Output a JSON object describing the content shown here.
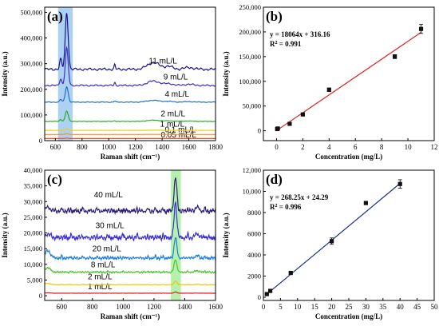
{
  "chart_data": [
    {
      "type": "line",
      "panel_label": "(a)",
      "xlabel": "Raman shift (cm⁻¹)",
      "ylabel": "Intensity (a.u.)",
      "xlim": [
        520,
        1800
      ],
      "ylim": [
        0,
        520000
      ],
      "xticks": [
        600,
        800,
        1000,
        1200,
        1400,
        1600,
        1800
      ],
      "yticks": [
        0,
        100000,
        200000,
        300000,
        400000,
        500000
      ],
      "ytick_labels": [
        "0",
        "100,000",
        "200,000",
        "300,000",
        "400,000",
        "500,000"
      ],
      "highlight_band": {
        "x": [
          620,
          730
        ],
        "color": "#9ec9f0"
      },
      "grid": false,
      "series": [
        {
          "name": "0.05 mL/L",
          "color": "#e8502a",
          "baseline": 8000,
          "peak_height": 2000,
          "label_x": 1390,
          "label_y": 12000
        },
        {
          "name": "0.1 mL/L",
          "color": "#ff8c1a",
          "baseline": 24000,
          "peak_height": 3000,
          "label_x": 1420,
          "label_y": 33000
        },
        {
          "name": "1 mL/L",
          "color": "#f2cc1a",
          "baseline": 40000,
          "peak_height": 6000,
          "label_x": 1385,
          "label_y": 55000
        },
        {
          "name": "2 mL/L",
          "color": "#23b021",
          "baseline": 75000,
          "peak_height": 40000,
          "label_x": 1390,
          "label_y": 95000
        },
        {
          "name": "4 mL/L",
          "color": "#1f6fd1",
          "baseline": 150000,
          "peak_height": 60000,
          "label_x": 1420,
          "label_y": 172000
        },
        {
          "name": "9 mL/L",
          "color": "#3b2fc9",
          "baseline": 215000,
          "peak_height": 145000,
          "label_x": 1410,
          "label_y": 238000
        },
        {
          "name": "11 mL/L",
          "color": "#141490",
          "baseline": 278000,
          "peak_height": 220000,
          "label_x": 1300,
          "label_y": 300000
        }
      ]
    },
    {
      "type": "scatter",
      "panel_label": "(b)",
      "xlabel": "Concentration (mg/L)",
      "ylabel": "Intensity (a.u.)",
      "xlim": [
        -1,
        12
      ],
      "ylim": [
        -20000,
        250000
      ],
      "xticks": [
        0,
        2,
        4,
        6,
        8,
        10,
        12
      ],
      "yticks": [
        0,
        50000,
        100000,
        150000,
        200000,
        250000
      ],
      "ytick_labels": [
        "0",
        "50,000",
        "100,000",
        "150,000",
        "200,000",
        "250,000"
      ],
      "equation": "y = 18064x + 316.16",
      "r2_prefix": "R",
      "r2_value": " = 0.991",
      "fit": {
        "slope": 18064,
        "intercept": 316.16,
        "x_range": [
          0,
          11
        ],
        "color": "#e02020"
      },
      "points": [
        {
          "x": 0.05,
          "y": 3500,
          "err": 1200
        },
        {
          "x": 0.1,
          "y": 4500,
          "err": 1500
        },
        {
          "x": 1,
          "y": 14000,
          "err": 2000
        },
        {
          "x": 2,
          "y": 33000,
          "err": 2500
        },
        {
          "x": 4,
          "y": 83000,
          "err": 3500
        },
        {
          "x": 9,
          "y": 150000,
          "err": 4000
        },
        {
          "x": 11,
          "y": 206000,
          "err": 9000
        }
      ]
    },
    {
      "type": "line",
      "panel_label": "(c)",
      "xlabel": "Raman shift (cm⁻¹)",
      "ylabel": "Intensity (a.u.)",
      "xlim": [
        490,
        1600
      ],
      "ylim": [
        -1500,
        40000
      ],
      "xticks": [
        600,
        800,
        1000,
        1200,
        1400,
        1600
      ],
      "yticks": [
        0,
        5000,
        10000,
        15000,
        20000,
        25000,
        30000,
        35000,
        40000
      ],
      "ytick_labels": [
        "0",
        "5,000",
        "10,000",
        "15,000",
        "20,000",
        "25,000",
        "30,000",
        "35,000",
        "40,000"
      ],
      "highlight_band": {
        "x": [
          1310,
          1375
        ],
        "color": "#a8ef9e"
      },
      "grid": false,
      "series": [
        {
          "name": "1 mL/L",
          "color": "#e02020",
          "baseline": 800,
          "peak_height": 400,
          "label_x": 770,
          "label_y": 2100
        },
        {
          "name": "2 mL/L",
          "color": "#f0c800",
          "baseline": 3500,
          "peak_height": 1200,
          "label_x": 770,
          "label_y": 5300
        },
        {
          "name": "8 mL/L",
          "color": "#4fc430",
          "baseline": 7500,
          "peak_height": 4000,
          "label_x": 790,
          "label_y": 9100
        },
        {
          "name": "20 mL/L",
          "color": "#1e7fe0",
          "baseline": 12000,
          "peak_height": 6500,
          "label_x": 800,
          "label_y": 14200
        },
        {
          "name": "30 mL/L",
          "color": "#3a2fd8",
          "baseline": 18500,
          "peak_height": 11000,
          "label_x": 820,
          "label_y": 21500
        },
        {
          "name": "40 mL/L",
          "color": "#2d1a7a",
          "baseline": 27000,
          "peak_height": 10500,
          "label_x": 810,
          "label_y": 31400
        }
      ]
    },
    {
      "type": "scatter",
      "panel_label": "(d)",
      "xlabel": "Concentration (mg/L)",
      "ylabel": "Intensity (a.u.)",
      "xlim": [
        0,
        50
      ],
      "ylim": [
        -300,
        12000
      ],
      "xticks": [
        0,
        5,
        10,
        15,
        20,
        25,
        30,
        35,
        40,
        45,
        50
      ],
      "yticks": [
        0,
        2000,
        4000,
        6000,
        8000,
        10000,
        12000
      ],
      "ytick_labels": [
        "0",
        "2000",
        "4000",
        "6000",
        "8000",
        "10,000",
        "12,000"
      ],
      "equation": "y = 268.25x + 24.29",
      "r2_prefix": "R",
      "r2_value": " = 0.996",
      "fit": {
        "slope": 268.25,
        "intercept": 24.29,
        "x_range": [
          0.6,
          40
        ],
        "color": "#1a2a8c"
      },
      "points": [
        {
          "x": 1,
          "y": 300,
          "err": 80
        },
        {
          "x": 2,
          "y": 600,
          "err": 100
        },
        {
          "x": 8,
          "y": 2300,
          "err": 120
        },
        {
          "x": 20,
          "y": 5300,
          "err": 300
        },
        {
          "x": 30,
          "y": 8900,
          "err": 150
        },
        {
          "x": 40,
          "y": 10700,
          "err": 400
        }
      ]
    }
  ]
}
